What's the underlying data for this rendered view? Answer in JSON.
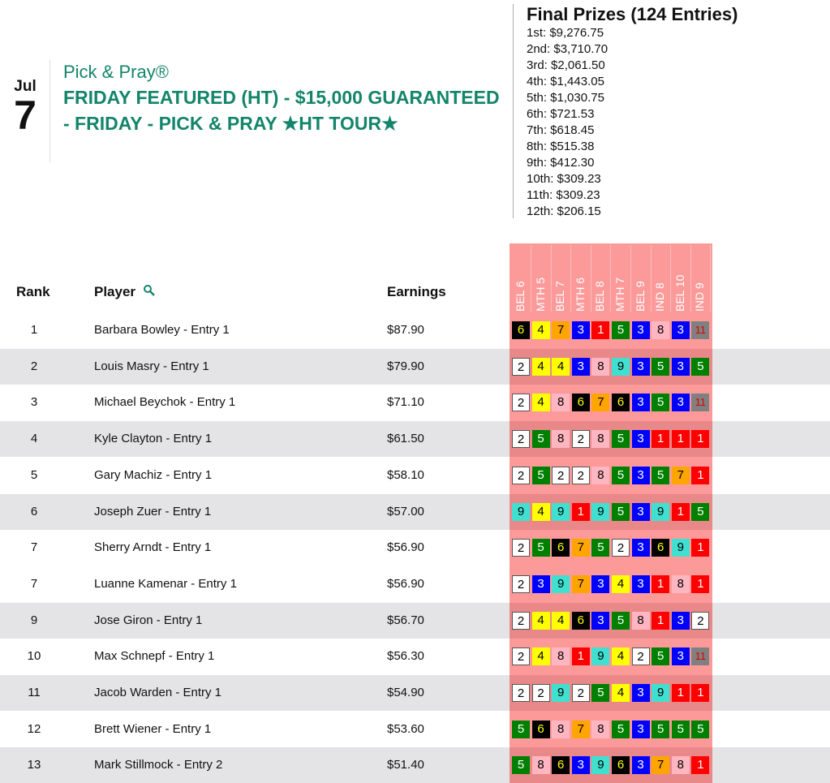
{
  "event": {
    "month": "Jul",
    "day": "7",
    "brand": "Pick & Pray®",
    "name": "FRIDAY FEATURED (HT) - $15,000 GUARANTEED - FRIDAY - PICK & PRAY ★HT TOUR★"
  },
  "prizes": {
    "title": "Final Prizes (124 Entries)",
    "items": [
      "1st: $9,276.75",
      "2nd: $3,710.70",
      "3rd: $2,061.50",
      "4th: $1,443.05",
      "5th: $1,030.75",
      "6th: $721.53",
      "7th: $618.45",
      "8th: $515.38",
      "9th: $412.30",
      "10th: $309.23",
      "11th: $309.23",
      "12th: $206.15"
    ]
  },
  "table": {
    "headers": {
      "rank": "Rank",
      "player": "Player",
      "earnings": "Earnings"
    },
    "search_icon": "magnifier-icon",
    "races": [
      "BEL 6",
      "MTH 5",
      "BEL 7",
      "MTH 6",
      "BEL 8",
      "MTH 7",
      "BEL 9",
      "IND 8",
      "BEL 10",
      "IND 9"
    ],
    "rows": [
      {
        "rank": "1",
        "player": "Barbara Bowley - Entry 1",
        "earnings": "$87.90",
        "shaded": false,
        "picks": [
          6,
          4,
          7,
          3,
          1,
          5,
          3,
          8,
          3,
          11
        ]
      },
      {
        "rank": "2",
        "player": "Louis Masry - Entry 1",
        "earnings": "$79.90",
        "shaded": true,
        "picks": [
          2,
          4,
          4,
          3,
          8,
          9,
          3,
          5,
          3,
          5
        ]
      },
      {
        "rank": "3",
        "player": "Michael Beychok - Entry 1",
        "earnings": "$71.10",
        "shaded": false,
        "picks": [
          2,
          4,
          8,
          6,
          7,
          6,
          3,
          5,
          3,
          11
        ]
      },
      {
        "rank": "4",
        "player": "Kyle Clayton - Entry 1",
        "earnings": "$61.50",
        "shaded": true,
        "picks": [
          2,
          5,
          8,
          2,
          8,
          5,
          3,
          1,
          1,
          1
        ]
      },
      {
        "rank": "5",
        "player": "Gary Machiz - Entry 1",
        "earnings": "$58.10",
        "shaded": false,
        "picks": [
          2,
          5,
          2,
          2,
          8,
          5,
          3,
          5,
          7,
          1
        ]
      },
      {
        "rank": "6",
        "player": "Joseph Zuer - Entry 1",
        "earnings": "$57.00",
        "shaded": true,
        "picks": [
          9,
          4,
          9,
          1,
          9,
          5,
          3,
          9,
          1,
          5
        ]
      },
      {
        "rank": "7",
        "player": "Sherry Arndt - Entry 1",
        "earnings": "$56.90",
        "shaded": false,
        "picks": [
          2,
          5,
          6,
          7,
          5,
          2,
          3,
          6,
          9,
          1
        ]
      },
      {
        "rank": "7",
        "player": "Luanne Kamenar - Entry 1",
        "earnings": "$56.90",
        "shaded": false,
        "picks": [
          2,
          3,
          9,
          7,
          3,
          4,
          3,
          1,
          8,
          1
        ]
      },
      {
        "rank": "9",
        "player": "Jose Giron - Entry 1",
        "earnings": "$56.70",
        "shaded": true,
        "picks": [
          2,
          4,
          4,
          6,
          3,
          5,
          8,
          1,
          3,
          2
        ]
      },
      {
        "rank": "10",
        "player": "Max Schnepf - Entry 1",
        "earnings": "$56.30",
        "shaded": false,
        "picks": [
          2,
          4,
          8,
          1,
          9,
          4,
          2,
          5,
          3,
          11
        ]
      },
      {
        "rank": "11",
        "player": "Jacob Warden - Entry 1",
        "earnings": "$54.90",
        "shaded": true,
        "picks": [
          2,
          2,
          9,
          2,
          5,
          4,
          3,
          9,
          1,
          1
        ]
      },
      {
        "rank": "12",
        "player": "Brett Wiener - Entry 1",
        "earnings": "$53.60",
        "shaded": false,
        "picks": [
          5,
          6,
          8,
          7,
          8,
          5,
          3,
          5,
          5,
          5
        ]
      },
      {
        "rank": "13",
        "player": "Mark Stillmock - Entry 2",
        "earnings": "$51.40",
        "shaded": true,
        "picks": [
          5,
          8,
          6,
          3,
          9,
          6,
          3,
          7,
          8,
          1
        ]
      }
    ]
  },
  "colors": {
    "accent": "#13856a",
    "pick_column": "#fc9a9a",
    "saddle": {
      "1": [
        "#ff0000",
        "#fff"
      ],
      "2": [
        "#ffffff",
        "#000"
      ],
      "3": [
        "#0000ff",
        "#fff"
      ],
      "4": [
        "#ffff00",
        "#000"
      ],
      "5": [
        "#008000",
        "#fff"
      ],
      "6": [
        "#000000",
        "#ffff00"
      ],
      "7": [
        "#ffa500",
        "#000"
      ],
      "8": [
        "#ffb6c1",
        "#000"
      ],
      "9": [
        "#40e0d0",
        "#000"
      ],
      "11": [
        "#808080",
        "#e00000"
      ]
    }
  }
}
